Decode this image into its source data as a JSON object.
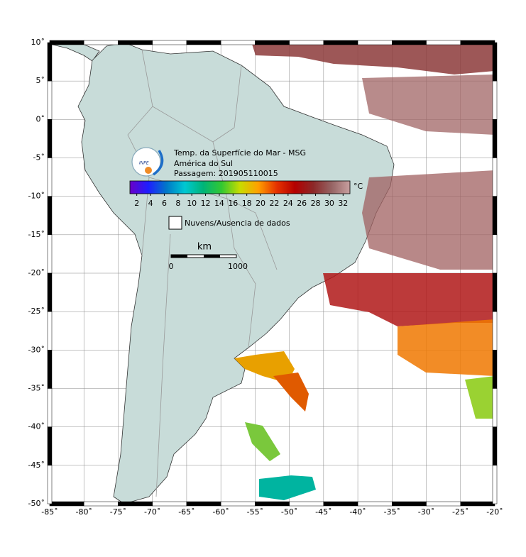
{
  "title_lines": [
    "Temp. da Superfície do Mar - MSG",
    "América do Sul",
    "Passagem: 201905110015"
  ],
  "logo": "INPE",
  "map": {
    "xlim": [
      -85,
      -20
    ],
    "ylim": [
      -50,
      10
    ],
    "grid": true,
    "xticks": [
      {
        "value": -85,
        "label": "-85˚"
      },
      {
        "value": -80,
        "label": "-80˚"
      },
      {
        "value": -75,
        "label": "-75˚"
      },
      {
        "value": -70,
        "label": "-70˚"
      },
      {
        "value": -65,
        "label": "-65˚"
      },
      {
        "value": -60,
        "label": "-60˚"
      },
      {
        "value": -55,
        "label": "-55˚"
      },
      {
        "value": -50,
        "label": "-50˚"
      },
      {
        "value": -45,
        "label": "-45˚"
      },
      {
        "value": -40,
        "label": "-40˚"
      },
      {
        "value": -35,
        "label": "-35˚"
      },
      {
        "value": -30,
        "label": "-30˚"
      },
      {
        "value": -25,
        "label": "-25˚"
      },
      {
        "value": -20,
        "label": "-20˚"
      }
    ],
    "yticks": [
      {
        "value": 10,
        "label": "10˚"
      },
      {
        "value": 5,
        "label": "5˚"
      },
      {
        "value": 0,
        "label": "0˚"
      },
      {
        "value": -5,
        "label": "-5˚"
      },
      {
        "value": -10,
        "label": "-10˚"
      },
      {
        "value": -15,
        "label": "-15˚"
      },
      {
        "value": -20,
        "label": "-20˚"
      },
      {
        "value": -25,
        "label": "-25˚"
      },
      {
        "value": -30,
        "label": "-30˚"
      },
      {
        "value": -35,
        "label": "-35˚"
      },
      {
        "value": -40,
        "label": "-40˚"
      },
      {
        "value": -45,
        "label": "-45˚"
      },
      {
        "value": -50,
        "label": "-50˚"
      }
    ]
  },
  "colorbar": {
    "range": [
      1,
      33
    ],
    "ticks": [
      2,
      4,
      6,
      8,
      10,
      12,
      14,
      16,
      18,
      20,
      22,
      24,
      26,
      28,
      30,
      32
    ],
    "unit": "°C",
    "colors": [
      "#6a00c8",
      "#1e1eff",
      "#0078c8",
      "#00c8d2",
      "#00b478",
      "#32c832",
      "#c8dc00",
      "#ffa000",
      "#e63200",
      "#b40000",
      "#8c2828",
      "#966464",
      "#c8a0a0"
    ]
  },
  "legend": {
    "label": "Nuvens/Ausencia de dados"
  },
  "scale_bar": {
    "unit": "km",
    "labels": [
      0,
      1000
    ]
  }
}
